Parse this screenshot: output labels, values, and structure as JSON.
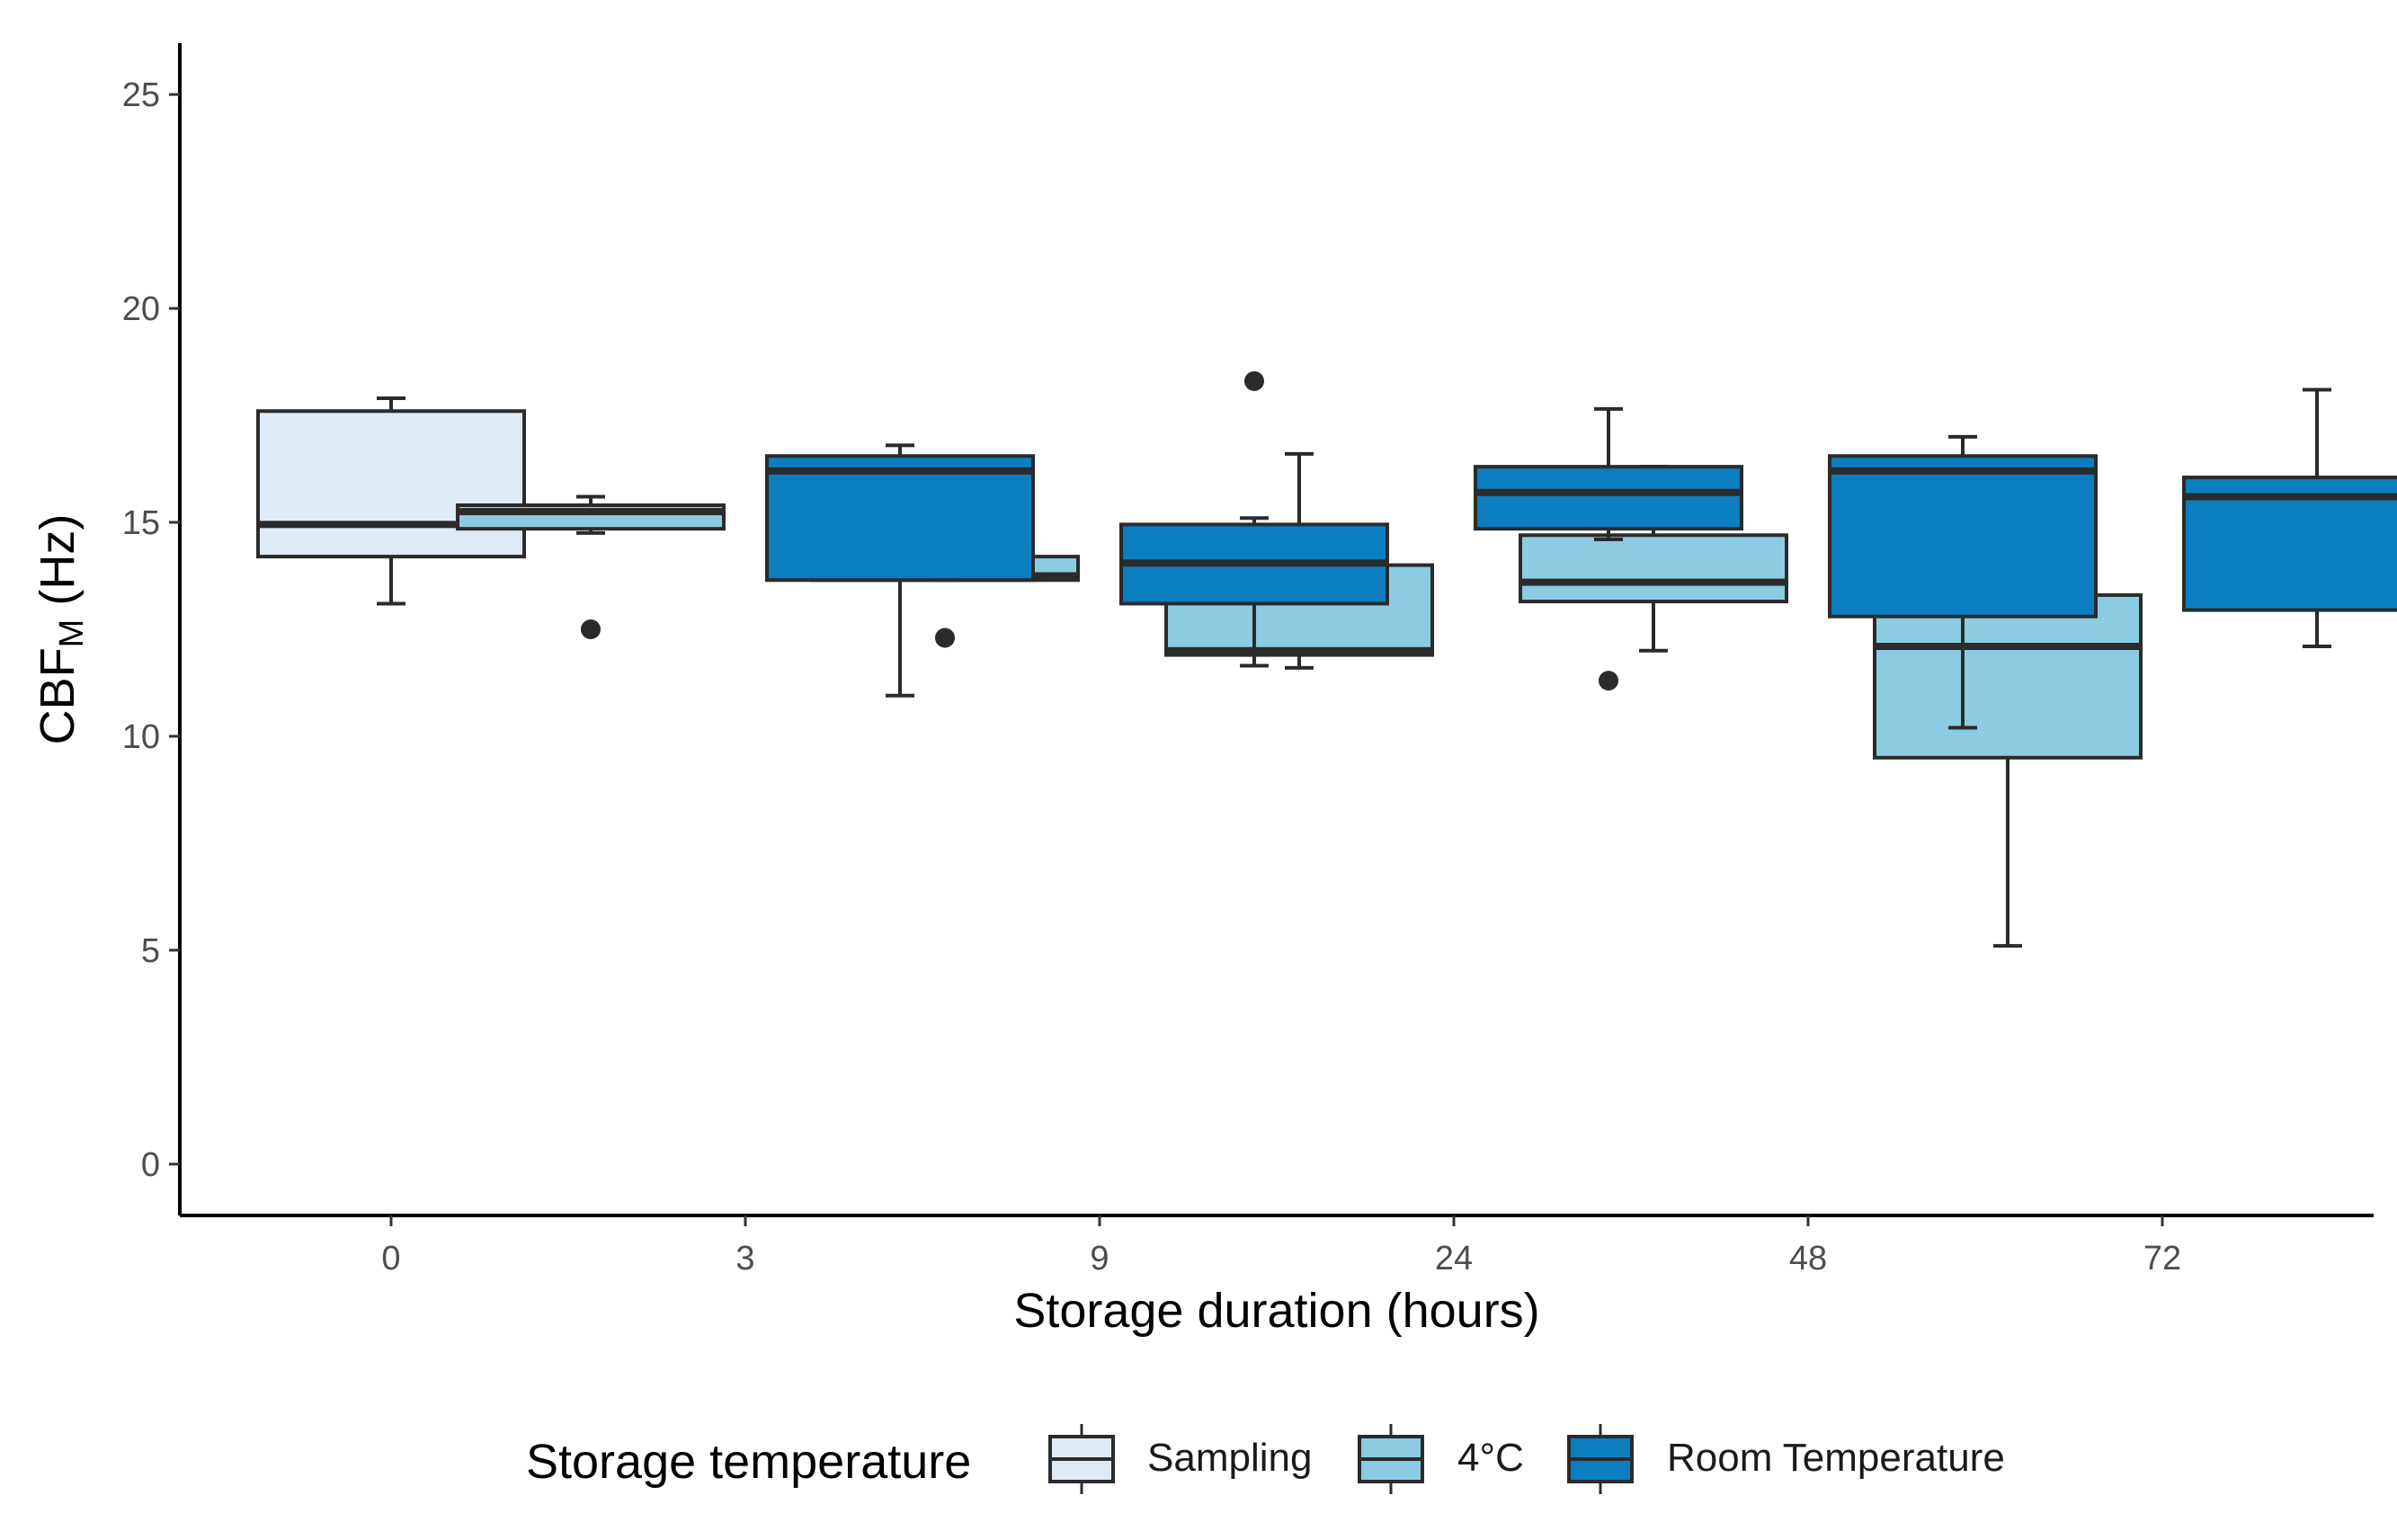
{
  "chart_data": {
    "type": "boxplot",
    "title": "",
    "xlabel": "Storage duration (hours)",
    "ylabel": {
      "main": "CBF",
      "subscript": "M",
      "unit": " (Hz)"
    },
    "categories": [
      "0",
      "3",
      "9",
      "24",
      "48",
      "72"
    ],
    "yticks": [
      0,
      5,
      10,
      15,
      20,
      25
    ],
    "ylim": [
      -1.2,
      26.2
    ],
    "grid": false,
    "legend": {
      "title": "Storage temperature",
      "position": "bottom",
      "items": [
        {
          "name": "Sampling",
          "color": "#deebf7"
        },
        {
          "name": "4°C",
          "color": "#8ccce3"
        },
        {
          "name": "Room Temperature",
          "color": "#0b7ec0"
        }
      ]
    },
    "series": [
      {
        "name": "Sampling",
        "color": "#deebf7",
        "boxes": [
          {
            "category": "0",
            "min": 13.1,
            "q1": 14.2,
            "median": 14.95,
            "q3": 17.6,
            "max": 17.9,
            "outliers": []
          }
        ]
      },
      {
        "name": "4°C",
        "color": "#8ccce3",
        "boxes": [
          {
            "category": "3",
            "min": 14.75,
            "q1": 14.85,
            "median": 15.25,
            "q3": 15.4,
            "max": 15.6,
            "outliers": [
              12.5
            ]
          },
          {
            "category": "9",
            "min": 13.65,
            "q1": 13.65,
            "median": 13.75,
            "q3": 14.2,
            "max": 14.8,
            "outliers": [
              12.3
            ]
          },
          {
            "category": "24",
            "min": 11.6,
            "q1": 11.9,
            "median": 12.0,
            "q3": 14.0,
            "max": 16.6,
            "outliers": []
          },
          {
            "category": "48",
            "min": 12.0,
            "q1": 13.15,
            "median": 13.6,
            "q3": 14.7,
            "max": 16.3,
            "outliers": []
          },
          {
            "category": "72",
            "min": 5.1,
            "q1": 9.5,
            "median": 12.1,
            "q3": 13.3,
            "max": 15.4,
            "outliers": []
          }
        ]
      },
      {
        "name": "Room Temperature",
        "color": "#0b7ec0",
        "boxes": [
          {
            "category": "3",
            "min": 10.95,
            "q1": 13.65,
            "median": 16.2,
            "q3": 16.55,
            "max": 16.8,
            "outliers": []
          },
          {
            "category": "9",
            "min": 11.65,
            "q1": 13.1,
            "median": 14.05,
            "q3": 14.95,
            "max": 15.1,
            "outliers": [
              18.3
            ]
          },
          {
            "category": "24",
            "min": 14.6,
            "q1": 14.85,
            "median": 15.7,
            "q3": 16.3,
            "max": 17.65,
            "outliers": [
              11.3
            ]
          },
          {
            "category": "48",
            "min": 10.2,
            "q1": 12.8,
            "median": 16.2,
            "q3": 16.55,
            "max": 17.0,
            "outliers": []
          },
          {
            "category": "72",
            "min": 12.1,
            "q1": 12.95,
            "median": 15.6,
            "q3": 16.05,
            "max": 18.1,
            "outliers": []
          }
        ]
      }
    ]
  }
}
